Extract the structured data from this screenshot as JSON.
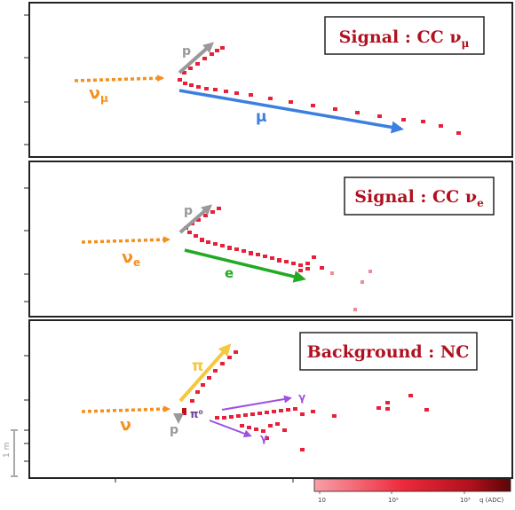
{
  "panels": [
    {
      "id": "cc-numu",
      "title": {
        "prefix": "Signal : CC ",
        "nu": "ν",
        "sub": "μ"
      },
      "incoming": {
        "label": "ν",
        "sub": "μ"
      },
      "tracks": [
        {
          "id": "proton",
          "label": "p",
          "color": "#999999"
        },
        {
          "id": "muon",
          "label": "μ",
          "color": "#3b7fe0"
        }
      ]
    },
    {
      "id": "cc-nue",
      "title": {
        "prefix": "Signal : CC ",
        "nu": "ν",
        "sub": "e"
      },
      "incoming": {
        "label": "ν",
        "sub": "e"
      },
      "tracks": [
        {
          "id": "proton",
          "label": "p",
          "color": "#999999"
        },
        {
          "id": "electron",
          "label": "e",
          "color": "#22aa22"
        }
      ]
    },
    {
      "id": "nc",
      "title": {
        "prefix": "Background : NC",
        "nu": "",
        "sub": ""
      },
      "incoming": {
        "label": "ν",
        "sub": ""
      },
      "tracks": [
        {
          "id": "pion",
          "label": "π",
          "color": "#f5c842"
        },
        {
          "id": "proton",
          "label": "p",
          "color": "#999999"
        },
        {
          "id": "pi0",
          "label": "π⁰",
          "color": "#6a3d9a"
        },
        {
          "id": "gamma1",
          "label": "γ",
          "color": "#a050e0"
        },
        {
          "id": "gamma2",
          "label": "γ",
          "color": "#a050e0"
        }
      ]
    }
  ],
  "colors": {
    "neutrino": "#f5901e",
    "title": "#b01020",
    "hits": "#e8203a",
    "frame": "#222222"
  },
  "scale_bar": {
    "label": "1 m"
  },
  "colorbar": {
    "label": "q (ADC)",
    "ticks": [
      "10",
      "10²",
      "10³"
    ]
  }
}
